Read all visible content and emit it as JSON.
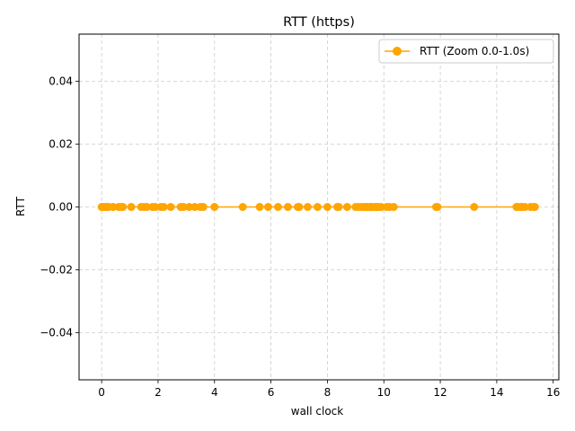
{
  "chart_data": {
    "type": "line",
    "title": "RTT (https)",
    "xlabel": "wall clock",
    "ylabel": "RTT",
    "xlim": [
      -0.8,
      16.2
    ],
    "ylim": [
      -0.055,
      0.055
    ],
    "x_ticks": [
      0,
      2,
      4,
      6,
      8,
      10,
      12,
      14,
      16
    ],
    "x_tick_labels": [
      "0",
      "2",
      "4",
      "6",
      "8",
      "10",
      "12",
      "14",
      "16"
    ],
    "y_ticks": [
      -0.04,
      -0.02,
      0.0,
      0.02,
      0.04
    ],
    "y_tick_labels": [
      "−0.04",
      "−0.02",
      "0.00",
      "0.02",
      "0.04"
    ],
    "grid": true,
    "legend_position": "top-right",
    "series": [
      {
        "name": "RTT (Zoom 0.0-1.0s)",
        "color": "#ffa500",
        "marker": "circle",
        "x": [
          0.0,
          0.05,
          0.1,
          0.15,
          0.2,
          0.25,
          0.4,
          0.6,
          0.7,
          0.75,
          1.05,
          1.4,
          1.5,
          1.6,
          1.8,
          1.9,
          2.1,
          2.2,
          2.45,
          2.8,
          2.9,
          3.1,
          3.3,
          3.5,
          3.6,
          4.0,
          5.0,
          5.6,
          5.9,
          6.25,
          6.6,
          6.95,
          7.0,
          7.3,
          7.65,
          8.0,
          8.35,
          8.4,
          8.7,
          9.0,
          9.1,
          9.2,
          9.3,
          9.35,
          9.4,
          9.5,
          9.55,
          9.6,
          9.7,
          9.75,
          9.8,
          9.9,
          10.1,
          10.2,
          10.35,
          11.85,
          11.9,
          13.2,
          14.7,
          14.75,
          14.85,
          14.9,
          15.0,
          15.2,
          15.3,
          15.35
        ],
        "y": [
          0,
          0,
          0,
          0,
          0,
          0,
          0,
          0,
          0,
          0,
          0,
          0,
          0,
          0,
          0,
          0,
          0,
          0,
          0,
          0,
          0,
          0,
          0,
          0,
          0,
          0,
          0,
          0,
          0,
          0,
          0,
          0,
          0,
          0,
          0,
          0,
          0,
          0,
          0,
          0,
          0,
          0,
          0,
          0,
          0,
          0,
          0,
          0,
          0,
          0,
          0,
          0,
          0,
          0,
          0,
          0,
          0,
          0,
          0,
          0,
          0,
          0,
          0,
          0,
          0,
          0
        ]
      }
    ]
  }
}
